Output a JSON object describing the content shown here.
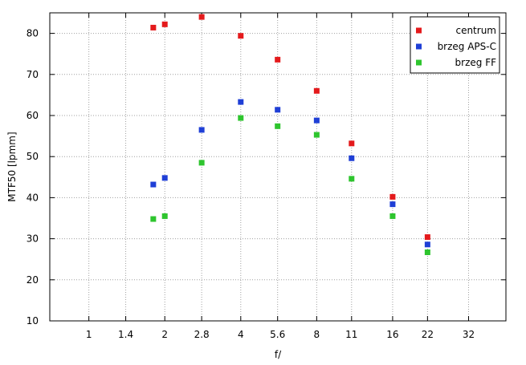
{
  "chart_data": {
    "type": "scatter",
    "title": "",
    "xlabel": "f/",
    "ylabel": "MTF50 [lpmm]",
    "x_scale": "log2",
    "x_ticks": [
      1,
      1.4,
      2,
      2.8,
      4,
      5.6,
      8,
      11,
      16,
      22,
      32
    ],
    "x_tick_labels": [
      "1",
      "1.4",
      "2",
      "2.8",
      "4",
      "5.6",
      "8",
      "11",
      "16",
      "22",
      "32"
    ],
    "xlim": [
      0.7,
      45
    ],
    "ylim": [
      10,
      85
    ],
    "y_ticks": [
      10,
      20,
      30,
      40,
      50,
      60,
      70,
      80
    ],
    "grid": true,
    "legend_position": "top-right",
    "series": [
      {
        "name": "centrum",
        "color": "#e41a1c",
        "points": [
          [
            1.8,
            81.4
          ],
          [
            2,
            82.2
          ],
          [
            2.8,
            84.0
          ],
          [
            4,
            79.4
          ],
          [
            5.6,
            73.6
          ],
          [
            8,
            66.0
          ],
          [
            11,
            53.2
          ],
          [
            16,
            40.2
          ],
          [
            22,
            30.4
          ]
        ]
      },
      {
        "name": "brzeg APS-C",
        "color": "#1f3fd6",
        "points": [
          [
            1.8,
            43.2
          ],
          [
            2,
            44.8
          ],
          [
            2.8,
            56.5
          ],
          [
            4,
            63.3
          ],
          [
            5.6,
            61.4
          ],
          [
            8,
            58.8
          ],
          [
            11,
            49.6
          ],
          [
            16,
            38.4
          ],
          [
            22,
            28.6
          ]
        ]
      },
      {
        "name": "brzeg FF",
        "color": "#2ec52e",
        "points": [
          [
            1.8,
            34.8
          ],
          [
            2,
            35.5
          ],
          [
            2.8,
            48.5
          ],
          [
            4,
            59.4
          ],
          [
            5.6,
            57.4
          ],
          [
            8,
            55.3
          ],
          [
            11,
            44.6
          ],
          [
            16,
            35.5
          ],
          [
            22,
            26.7
          ]
        ]
      }
    ]
  }
}
